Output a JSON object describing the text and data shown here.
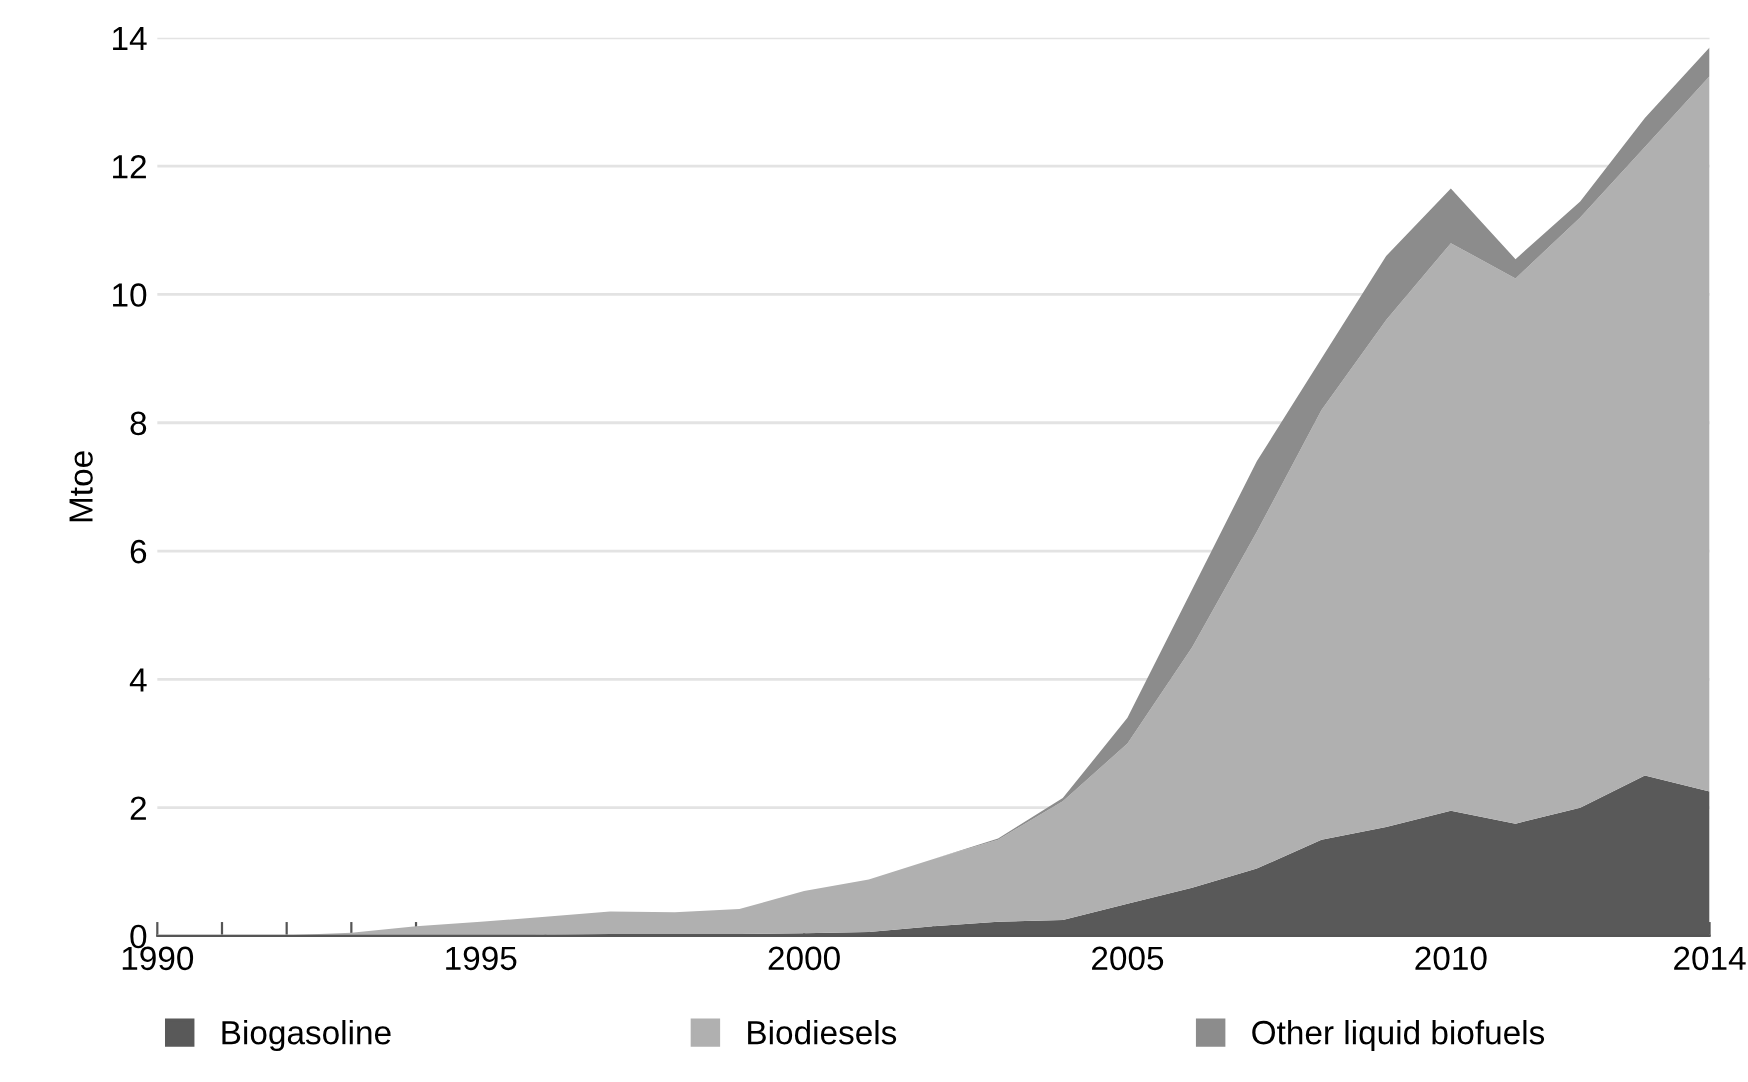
{
  "chart_data": {
    "type": "area",
    "stacked": true,
    "ylabel": "Mtoe",
    "x": [
      1990,
      1991,
      1992,
      1993,
      1994,
      1995,
      1996,
      1997,
      1998,
      1999,
      2000,
      2001,
      2002,
      2003,
      2004,
      2005,
      2006,
      2007,
      2008,
      2009,
      2010,
      2011,
      2012,
      2013,
      2014
    ],
    "series": [
      {
        "name": "Biogasoline",
        "color": "#595959",
        "values": [
          0,
          0,
          0,
          0,
          0,
          0,
          0.02,
          0.03,
          0.03,
          0.03,
          0.04,
          0.06,
          0.15,
          0.22,
          0.25,
          0.5,
          0.75,
          1.05,
          1.5,
          1.7,
          1.95,
          1.75,
          2.0,
          2.5,
          2.25
        ]
      },
      {
        "name": "Biodiesels",
        "color": "#b0b0b0",
        "values": [
          0,
          0,
          0.01,
          0.05,
          0.15,
          0.22,
          0.28,
          0.35,
          0.34,
          0.39,
          0.66,
          0.82,
          1.05,
          1.28,
          1.85,
          2.5,
          3.75,
          5.25,
          6.7,
          7.9,
          8.85,
          8.5,
          9.2,
          9.8,
          11.15
        ]
      },
      {
        "name": "Other liquid biofuels",
        "color": "#8c8c8c",
        "values": [
          0,
          0,
          0,
          0,
          0,
          0,
          0,
          0,
          0,
          0,
          0,
          0,
          0,
          0.02,
          0.05,
          0.4,
          0.9,
          1.1,
          0.8,
          1.0,
          0.85,
          0.3,
          0.25,
          0.45,
          0.45
        ]
      }
    ],
    "xlim": [
      1990,
      2014
    ],
    "xticks": [
      1990,
      {
        "value": 1991,
        "label": null
      },
      {
        "value": 1992,
        "label": null
      },
      {
        "value": 1993,
        "label": null
      },
      {
        "value": 1994,
        "label": null
      },
      1995,
      {
        "value": 1996,
        "label": null
      },
      {
        "value": 1997,
        "label": null
      },
      {
        "value": 1998,
        "label": null
      },
      {
        "value": 1999,
        "label": null
      },
      2000,
      {
        "value": 2001,
        "label": null
      },
      {
        "value": 2002,
        "label": null
      },
      {
        "value": 2003,
        "label": null
      },
      {
        "value": 2004,
        "label": null
      },
      2005,
      {
        "value": 2006,
        "label": null
      },
      {
        "value": 2007,
        "label": null
      },
      {
        "value": 2008,
        "label": null
      },
      {
        "value": 2009,
        "label": null
      },
      2010,
      {
        "value": 2011,
        "label": null
      },
      {
        "value": 2012,
        "label": null
      },
      {
        "value": 2013,
        "label": null
      },
      2014
    ],
    "ylim": [
      0,
      14
    ],
    "yticks": [
      0,
      2,
      4,
      6,
      8,
      10,
      12,
      14
    ],
    "grid": "y",
    "legend": "bottom"
  }
}
